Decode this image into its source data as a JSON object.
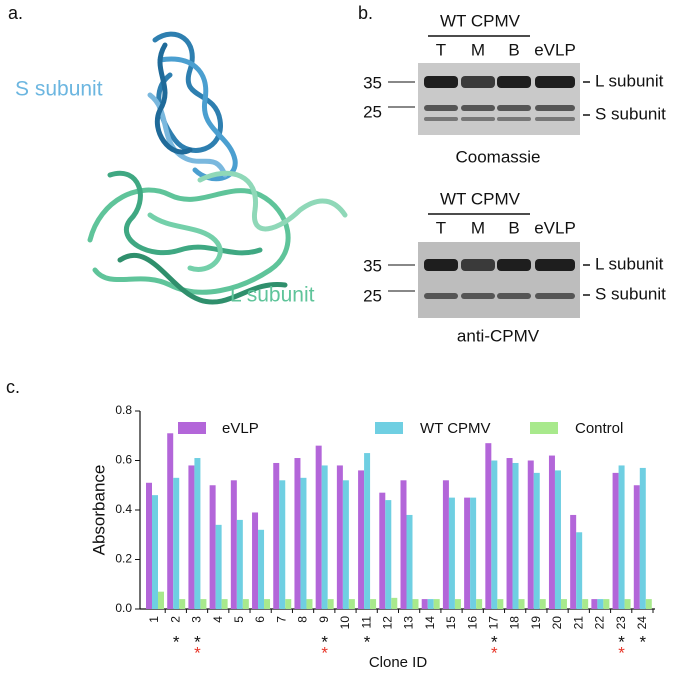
{
  "panel_a": {
    "label": "a.",
    "s_label": "S subunit",
    "l_label": "L subunit"
  },
  "panel_b": {
    "label": "b.",
    "blots": [
      {
        "group_label": "WT CPMV",
        "lanes": [
          "T",
          "M",
          "B",
          "eVLP"
        ],
        "markers": [
          "35",
          "25"
        ],
        "bands": [
          "L subunit",
          "S subunit"
        ],
        "stain": "Coomassie"
      },
      {
        "group_label": "WT CPMV",
        "lanes": [
          "T",
          "M",
          "B",
          "eVLP"
        ],
        "markers": [
          "35",
          "25"
        ],
        "bands": [
          "L subunit",
          "S subunit"
        ],
        "stain": "anti-CPMV"
      }
    ]
  },
  "chart_data": {
    "type": "bar",
    "panel_label": "c.",
    "x_label": "Clone ID",
    "y_label": "Absorbance",
    "categories": [
      "1",
      "2",
      "3",
      "4",
      "5",
      "6",
      "7",
      "8",
      "9",
      "10",
      "11",
      "12",
      "13",
      "14",
      "15",
      "16",
      "17",
      "18",
      "19",
      "20",
      "21",
      "22",
      "23",
      "24"
    ],
    "series": [
      {
        "name": "eVLP",
        "color": "#b366d9",
        "values": [
          0.51,
          0.71,
          0.58,
          0.5,
          0.52,
          0.39,
          0.59,
          0.61,
          0.66,
          0.58,
          0.56,
          0.47,
          0.52,
          0.04,
          0.52,
          0.45,
          0.67,
          0.61,
          0.6,
          0.62,
          0.38,
          0.04,
          0.55,
          0.5
        ]
      },
      {
        "name": "WT CPMV",
        "color": "#6fcfe2",
        "values": [
          0.46,
          0.53,
          0.61,
          0.34,
          0.36,
          0.32,
          0.52,
          0.53,
          0.58,
          0.52,
          0.63,
          0.44,
          0.38,
          0.04,
          0.45,
          0.45,
          0.6,
          0.59,
          0.55,
          0.56,
          0.31,
          0.04,
          0.58,
          0.57
        ]
      },
      {
        "name": "Control",
        "color": "#a8e98c",
        "values": [
          0.07,
          0.04,
          0.04,
          0.04,
          0.04,
          0.04,
          0.04,
          0.04,
          0.04,
          0.04,
          0.04,
          0.045,
          0.04,
          0.04,
          0.04,
          0.04,
          0.04,
          0.04,
          0.04,
          0.04,
          0.04,
          0.04,
          0.04,
          0.04
        ]
      }
    ],
    "ylim": [
      0,
      0.8
    ],
    "yticks": [
      {
        "value": 0,
        "label": "0.0"
      },
      0.2,
      0.4,
      0.6,
      0.8
    ],
    "legend": "top",
    "annotations": [
      {
        "text": "*",
        "color": "#111111",
        "category": "2"
      },
      {
        "text": "*",
        "color": "#111111",
        "category": "3"
      },
      {
        "text": "*",
        "color": "#e8372a",
        "category": "3"
      },
      {
        "text": "*",
        "color": "#111111",
        "category": "9"
      },
      {
        "text": "*",
        "color": "#e8372a",
        "category": "9"
      },
      {
        "text": "*",
        "color": "#111111",
        "category": "11"
      },
      {
        "text": "*",
        "color": "#111111",
        "category": "17"
      },
      {
        "text": "*",
        "color": "#e8372a",
        "category": "17"
      },
      {
        "text": "*",
        "color": "#111111",
        "category": "23"
      },
      {
        "text": "*",
        "color": "#e8372a",
        "category": "23"
      },
      {
        "text": "*",
        "color": "#111111",
        "category": "24"
      }
    ]
  }
}
